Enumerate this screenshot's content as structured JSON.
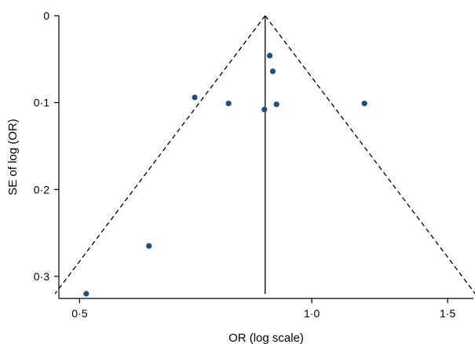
{
  "chart_data": {
    "type": "scatter",
    "title": "",
    "xlabel": "OR (log scale)",
    "ylabel": "SE of log (OR)",
    "x_scale": "log",
    "y_inverted": true,
    "xlim": [
      0.47,
      1.62
    ],
    "ylim": [
      0,
      0.32
    ],
    "x_ticks": [
      {
        "value": 0.5,
        "label": "0·5"
      },
      {
        "value": 1.0,
        "label": "1·0"
      },
      {
        "value": 1.5,
        "label": "1·5"
      }
    ],
    "y_ticks": [
      {
        "value": 0,
        "label": "0"
      },
      {
        "value": 0.1,
        "label": "0·1"
      },
      {
        "value": 0.2,
        "label": "0·2"
      },
      {
        "value": 0.3,
        "label": "0·3"
      }
    ],
    "pooled_or": 0.87,
    "funnel_z": 1.96,
    "marker_color": "#1f4e79",
    "points": [
      {
        "or": 0.51,
        "se": 0.32
      },
      {
        "or": 0.615,
        "se": 0.265
      },
      {
        "or": 0.705,
        "se": 0.094
      },
      {
        "or": 0.78,
        "se": 0.101
      },
      {
        "or": 0.868,
        "se": 0.108
      },
      {
        "or": 0.882,
        "se": 0.046
      },
      {
        "or": 0.89,
        "se": 0.064
      },
      {
        "or": 0.9,
        "se": 0.102
      },
      {
        "or": 1.17,
        "se": 0.101
      }
    ]
  }
}
